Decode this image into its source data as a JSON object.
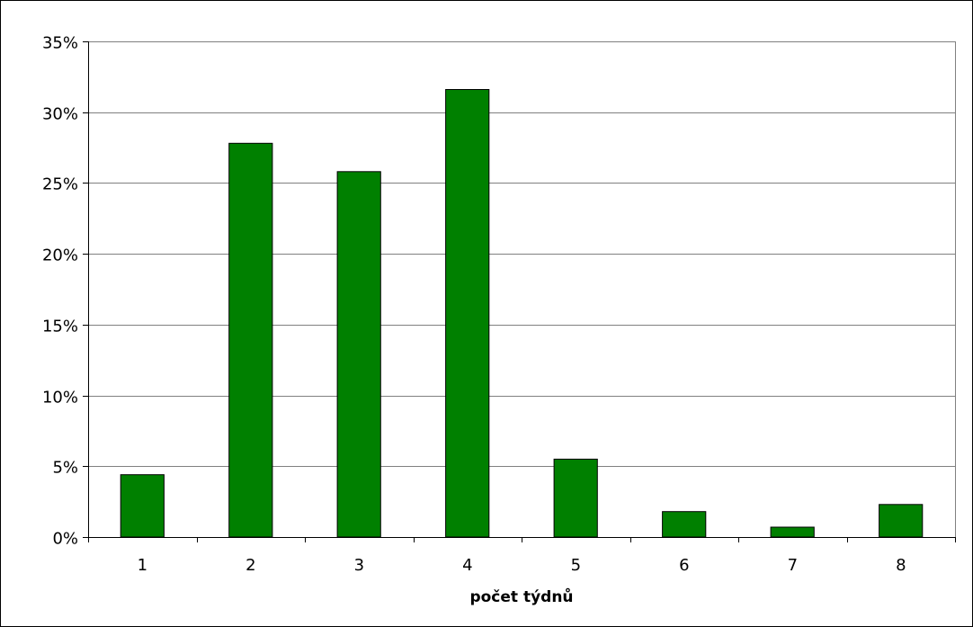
{
  "chart_data": {
    "type": "bar",
    "categories": [
      "1",
      "2",
      "3",
      "4",
      "5",
      "6",
      "7",
      "8"
    ],
    "values": [
      4.4,
      27.8,
      25.8,
      31.6,
      5.5,
      1.8,
      0.7,
      2.3
    ],
    "title": "",
    "xlabel": "počet týdnů",
    "ylabel": "",
    "ylim": [
      0,
      35
    ],
    "yticks": [
      0,
      5,
      10,
      15,
      20,
      25,
      30,
      35
    ],
    "ytick_labels": [
      "0%",
      "5%",
      "10%",
      "15%",
      "20%",
      "25%",
      "30%",
      "35%"
    ],
    "grid": true,
    "legend": "none",
    "bar_color": "#008000",
    "bar_edge_color": "#000000",
    "grid_color": "#808080"
  }
}
